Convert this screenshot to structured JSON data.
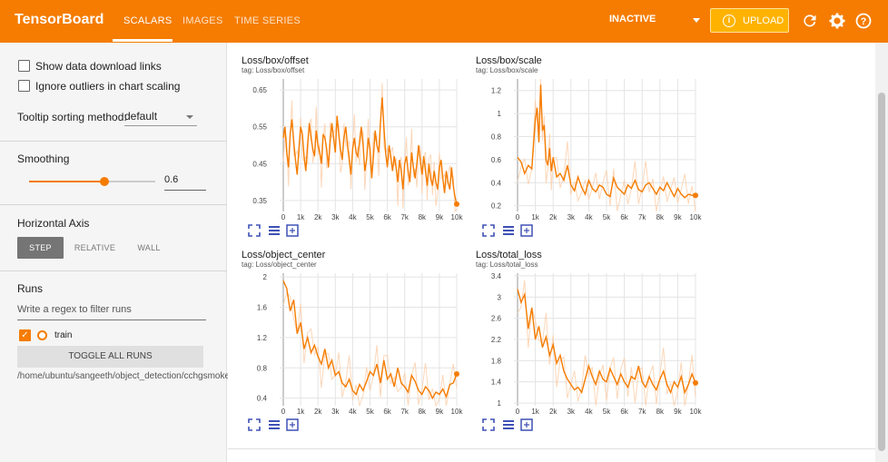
{
  "app": {
    "brand": "TensorBoard",
    "tabs": [
      {
        "label": "SCALARS",
        "active": true
      },
      {
        "label": "IMAGES",
        "active": false
      },
      {
        "label": "TIME SERIES",
        "active": false
      }
    ],
    "status_select": "INACTIVE",
    "upload_label": "UPLOAD",
    "accent_color": "#f57c00",
    "icons": [
      "refresh-icon",
      "settings-icon",
      "help-icon"
    ]
  },
  "sidebar": {
    "show_download_label": "Show data download links",
    "show_download_checked": false,
    "ignore_outliers_label": "Ignore outliers in chart scaling",
    "ignore_outliers_checked": false,
    "tooltip_label": "Tooltip sorting method:",
    "tooltip_value": "default",
    "smoothing_label": "Smoothing",
    "smoothing_value": "0.6",
    "smoothing_fraction": 0.6,
    "horizontal_axis_label": "Horizontal Axis",
    "axis_options": [
      {
        "label": "STEP",
        "active": true
      },
      {
        "label": "RELATIVE",
        "active": false
      },
      {
        "label": "WALL",
        "active": false
      }
    ],
    "runs_label": "Runs",
    "regex_placeholder": "Write a regex to filter runs",
    "run_name": "train",
    "run_checked": true,
    "toggle_all_label": "TOGGLE ALL RUNS",
    "run_path": "/home/ubuntu/sangeeth/object_detection/cchgsmoke"
  },
  "chart_data": [
    {
      "type": "line",
      "title": "Loss/box/offset",
      "tag": "tag: Loss/box/offset",
      "x_ticks": [
        "0",
        "1k",
        "2k",
        "3k",
        "4k",
        "5k",
        "6k",
        "7k",
        "8k",
        "9k",
        "10k"
      ],
      "y_ticks": [
        "0.65",
        "0.55",
        "0.45",
        "0.35"
      ],
      "ylim": [
        0.32,
        0.68
      ],
      "xlim": [
        0,
        10000
      ],
      "series": [
        {
          "x": [
            0,
            100,
            200,
            300,
            400,
            500,
            600,
            700,
            800,
            900,
            1000,
            1100,
            1200,
            1300,
            1400,
            1500,
            1600,
            1700,
            1800,
            1900,
            2000,
            2100,
            2200,
            2300,
            2400,
            2500,
            2600,
            2700,
            2800,
            2900,
            3000,
            3100,
            3200,
            3300,
            3400,
            3500,
            3600,
            3700,
            3800,
            3900,
            4000,
            4100,
            4200,
            4300,
            4400,
            4500,
            4600,
            4700,
            4800,
            4900,
            5000,
            5100,
            5200,
            5300,
            5400,
            5500,
            5600,
            5700,
            5800,
            5900,
            6000,
            6100,
            6200,
            6300,
            6400,
            6500,
            6600,
            6700,
            6800,
            6900,
            7000,
            7100,
            7200,
            7300,
            7400,
            7500,
            7600,
            7700,
            7800,
            7900,
            8000,
            8100,
            8200,
            8300,
            8400,
            8500,
            8600,
            8700,
            8800,
            8900,
            9000,
            9100,
            9200,
            9300,
            9400,
            9500,
            9600,
            9700,
            9800,
            9900,
            10000
          ],
          "y": [
            0.52,
            0.55,
            0.48,
            0.44,
            0.53,
            0.57,
            0.51,
            0.46,
            0.42,
            0.49,
            0.55,
            0.53,
            0.47,
            0.43,
            0.5,
            0.56,
            0.52,
            0.49,
            0.47,
            0.54,
            0.5,
            0.48,
            0.45,
            0.53,
            0.52,
            0.49,
            0.44,
            0.51,
            0.56,
            0.52,
            0.48,
            0.58,
            0.53,
            0.49,
            0.46,
            0.52,
            0.55,
            0.5,
            0.46,
            0.42,
            0.49,
            0.52,
            0.48,
            0.47,
            0.51,
            0.55,
            0.5,
            0.43,
            0.46,
            0.52,
            0.49,
            0.41,
            0.47,
            0.54,
            0.5,
            0.48,
            0.56,
            0.63,
            0.55,
            0.48,
            0.44,
            0.5,
            0.47,
            0.43,
            0.47,
            0.44,
            0.4,
            0.46,
            0.43,
            0.38,
            0.45,
            0.47,
            0.43,
            0.4,
            0.48,
            0.44,
            0.41,
            0.45,
            0.5,
            0.46,
            0.42,
            0.47,
            0.43,
            0.39,
            0.45,
            0.41,
            0.39,
            0.43,
            0.4,
            0.38,
            0.44,
            0.46,
            0.41,
            0.37,
            0.43,
            0.4,
            0.38,
            0.44,
            0.39,
            0.36,
            0.34
          ]
        }
      ]
    },
    {
      "type": "line",
      "title": "Loss/box/scale",
      "tag": "tag: Loss/box/scale",
      "x_ticks": [
        "0",
        "1k",
        "2k",
        "3k",
        "4k",
        "5k",
        "6k",
        "7k",
        "8k",
        "9k",
        "10k"
      ],
      "y_ticks": [
        "1.2",
        "1",
        "0.8",
        "0.6",
        "0.4",
        "0.2"
      ],
      "ylim": [
        0.15,
        1.3
      ],
      "xlim": [
        0,
        10000
      ],
      "series": [
        {
          "x": [
            0,
            200,
            400,
            600,
            800,
            1000,
            1100,
            1200,
            1300,
            1400,
            1500,
            1600,
            1700,
            1800,
            1900,
            2000,
            2200,
            2400,
            2600,
            2800,
            3000,
            3200,
            3400,
            3600,
            3800,
            4000,
            4200,
            4400,
            4600,
            4800,
            5000,
            5200,
            5400,
            5600,
            5800,
            6000,
            6200,
            6400,
            6600,
            6800,
            7000,
            7200,
            7400,
            7600,
            7800,
            8000,
            8200,
            8400,
            8600,
            8800,
            9000,
            9200,
            9400,
            9600,
            9800,
            10000
          ],
          "y": [
            0.62,
            0.58,
            0.48,
            0.55,
            0.52,
            0.95,
            1.05,
            0.75,
            1.25,
            0.85,
            0.9,
            0.6,
            0.55,
            0.7,
            0.5,
            0.62,
            0.45,
            0.48,
            0.42,
            0.55,
            0.38,
            0.33,
            0.45,
            0.36,
            0.3,
            0.42,
            0.35,
            0.32,
            0.38,
            0.36,
            0.3,
            0.28,
            0.44,
            0.36,
            0.33,
            0.3,
            0.38,
            0.35,
            0.42,
            0.34,
            0.32,
            0.38,
            0.4,
            0.35,
            0.3,
            0.36,
            0.33,
            0.4,
            0.34,
            0.28,
            0.35,
            0.3,
            0.27,
            0.3,
            0.29,
            0.29
          ]
        }
      ]
    },
    {
      "type": "line",
      "title": "Loss/object_center",
      "tag": "tag: Loss/object_center",
      "x_ticks": [
        "0",
        "1k",
        "2k",
        "3k",
        "4k",
        "5k",
        "6k",
        "7k",
        "8k",
        "9k",
        "10k"
      ],
      "y_ticks": [
        "2",
        "1.6",
        "1.2",
        "0.8",
        "0.4"
      ],
      "ylim": [
        0.3,
        2.05
      ],
      "xlim": [
        0,
        10000
      ],
      "series": [
        {
          "x": [
            0,
            200,
            400,
            600,
            800,
            1000,
            1200,
            1400,
            1600,
            1800,
            2000,
            2200,
            2400,
            2600,
            2800,
            3000,
            3200,
            3400,
            3600,
            3800,
            4000,
            4200,
            4400,
            4600,
            4800,
            5000,
            5200,
            5400,
            5600,
            5800,
            6000,
            6200,
            6400,
            6600,
            6800,
            7000,
            7200,
            7400,
            7600,
            7800,
            8000,
            8200,
            8400,
            8600,
            8800,
            9000,
            9200,
            9400,
            9600,
            9800,
            10000
          ],
          "y": [
            1.95,
            1.85,
            1.55,
            1.7,
            1.25,
            1.4,
            1.05,
            1.2,
            1.0,
            1.1,
            0.95,
            0.85,
            1.05,
            0.8,
            0.9,
            0.7,
            0.75,
            0.6,
            0.55,
            0.65,
            0.5,
            0.45,
            0.58,
            0.5,
            0.62,
            0.75,
            0.7,
            0.85,
            0.6,
            0.9,
            0.65,
            0.72,
            0.55,
            0.8,
            0.6,
            0.55,
            0.48,
            0.7,
            0.62,
            0.5,
            0.45,
            0.55,
            0.5,
            0.4,
            0.48,
            0.45,
            0.52,
            0.42,
            0.58,
            0.6,
            0.72
          ]
        }
      ]
    },
    {
      "type": "line",
      "title": "Loss/total_loss",
      "tag": "tag: Loss/total_loss",
      "x_ticks": [
        "0",
        "1k",
        "2k",
        "3k",
        "4k",
        "5k",
        "6k",
        "7k",
        "8k",
        "9k",
        "10k"
      ],
      "y_ticks": [
        "3.4",
        "3",
        "2.6",
        "2.2",
        "1.8",
        "1.4",
        "1"
      ],
      "ylim": [
        0.95,
        3.45
      ],
      "xlim": [
        0,
        10000
      ],
      "series": [
        {
          "x": [
            0,
            200,
            400,
            600,
            800,
            1000,
            1200,
            1400,
            1600,
            1800,
            2000,
            2200,
            2400,
            2600,
            2800,
            3000,
            3200,
            3400,
            3600,
            3800,
            4000,
            4200,
            4400,
            4600,
            4800,
            5000,
            5200,
            5400,
            5600,
            5800,
            6000,
            6200,
            6400,
            6600,
            6800,
            7000,
            7200,
            7400,
            7600,
            7800,
            8000,
            8200,
            8400,
            8600,
            8800,
            9000,
            9200,
            9400,
            9600,
            9800,
            10000
          ],
          "y": [
            3.15,
            2.9,
            3.05,
            2.4,
            2.8,
            2.2,
            2.45,
            2.05,
            2.25,
            1.9,
            2.1,
            1.75,
            1.9,
            1.6,
            1.45,
            1.35,
            1.25,
            1.3,
            1.2,
            1.45,
            1.7,
            1.5,
            1.35,
            1.6,
            1.45,
            1.4,
            1.65,
            1.5,
            1.35,
            1.55,
            1.4,
            1.3,
            1.5,
            1.45,
            1.7,
            1.4,
            1.3,
            1.5,
            1.35,
            1.25,
            1.45,
            1.6,
            1.35,
            1.2,
            1.4,
            1.3,
            1.5,
            1.2,
            1.35,
            1.55,
            1.38
          ]
        }
      ]
    }
  ]
}
